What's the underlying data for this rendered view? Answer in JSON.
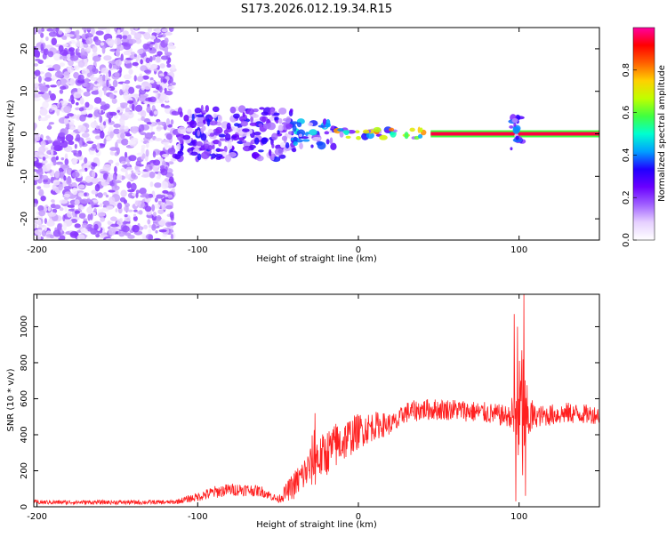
{
  "title": "S173.2026.012.19.34.R15",
  "colorbar": {
    "label": "Normalized spectral amplitude",
    "ticks": [
      "0.0",
      "0.2",
      "0.4",
      "0.6",
      "0.8"
    ],
    "tick_values": [
      0.0,
      0.2,
      0.4,
      0.6,
      0.8
    ],
    "range": [
      0.0,
      1.0
    ],
    "colors": [
      "#ffffff",
      "#e6d0ff",
      "#a060ff",
      "#6a00ff",
      "#2000ff",
      "#00a0ff",
      "#00ffd0",
      "#40ff40",
      "#c0ff00",
      "#ffd000",
      "#ff6000",
      "#ff0000",
      "#ff00a0"
    ]
  },
  "chart_data": [
    {
      "type": "heatmap",
      "name": "spectrogram",
      "xlabel": "Height of straight line (km)",
      "ylabel": "Frequency (Hz)",
      "xlim": [
        -202,
        150
      ],
      "ylim": [
        -25,
        25
      ],
      "x_ticks": [
        -200,
        -100,
        0,
        100
      ],
      "x_tick_labels": [
        "-200",
        "-100",
        "0",
        "100"
      ],
      "y_ticks": [
        -20,
        -10,
        0,
        10,
        20
      ],
      "y_tick_labels": [
        "-20",
        "-10",
        "0",
        "10",
        "20"
      ],
      "regions": [
        {
          "x_range": [
            -202,
            -115
          ],
          "freq_spread": 25,
          "amplitude": 0.15,
          "description": "broadband noise"
        },
        {
          "x_range": [
            -115,
            -40
          ],
          "freq_spread": 6,
          "amplitude": 0.25
        },
        {
          "x_range": [
            -40,
            -15
          ],
          "freq_spread": 3,
          "amplitude": 0.35
        },
        {
          "x_range": [
            -15,
            45
          ],
          "freq_spread": 1,
          "amplitude": 0.6
        },
        {
          "x_range": [
            45,
            150
          ],
          "freq_spread": 0.4,
          "amplitude": 0.95,
          "description": "carrier line at 0 Hz"
        },
        {
          "x_range": [
            95,
            102
          ],
          "freq_spread": 4,
          "amplitude": 0.3,
          "description": "disturbance near 100 km"
        }
      ]
    },
    {
      "type": "line",
      "name": "snr",
      "xlabel": "Height of straight line (km)",
      "ylabel": "SNR (10 * v/v)",
      "color": "#ff2020",
      "xlim": [
        -202,
        150
      ],
      "ylim": [
        0,
        1180
      ],
      "x_ticks": [
        -200,
        -100,
        0,
        100
      ],
      "x_tick_labels": [
        "-200",
        "-100",
        "0",
        "100"
      ],
      "y_ticks": [
        0,
        200,
        400,
        600,
        800,
        1000
      ],
      "y_tick_labels": [
        "0",
        "200",
        "400",
        "600",
        "800",
        "1000"
      ],
      "envelope": {
        "x": [
          -202,
          -150,
          -115,
          -100,
          -90,
          -80,
          -70,
          -60,
          -50,
          -40,
          -30,
          -27,
          -25,
          -20,
          -10,
          0,
          10,
          20,
          25,
          28,
          40,
          60,
          80,
          95,
          98,
          100,
          102,
          104,
          110,
          130,
          150
        ],
        "mean": [
          25,
          25,
          25,
          55,
          80,
          95,
          95,
          85,
          40,
          120,
          220,
          300,
          260,
          300,
          360,
          420,
          450,
          460,
          470,
          520,
          540,
          540,
          520,
          500,
          520,
          500,
          520,
          500,
          500,
          520,
          510
        ],
        "amp": [
          12,
          12,
          12,
          25,
          35,
          35,
          35,
          30,
          20,
          80,
          110,
          200,
          120,
          130,
          120,
          100,
          80,
          60,
          60,
          60,
          60,
          60,
          60,
          60,
          350,
          300,
          500,
          200,
          60,
          60,
          50
        ]
      },
      "spikes": [
        {
          "x": -27,
          "y": 520
        },
        {
          "x": -14,
          "y": 460
        },
        {
          "x": 97,
          "y": 1070
        },
        {
          "x": 98,
          "y": 30
        },
        {
          "x": 99,
          "y": 1000
        },
        {
          "x": 103,
          "y": 1180
        },
        {
          "x": 104,
          "y": 60
        }
      ]
    }
  ]
}
